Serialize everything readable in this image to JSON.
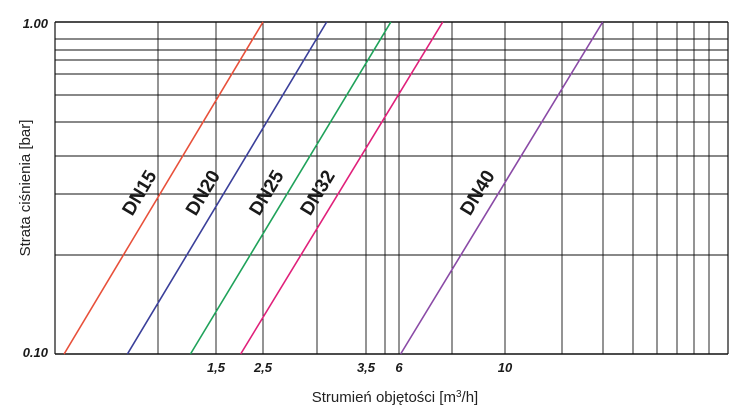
{
  "chart_data": {
    "type": "line",
    "title": "",
    "xlabel": "Strumień objętości [m³/h]",
    "xlabel_main": "Strumień objętości [m",
    "xlabel_sup": "3",
    "xlabel_tail": "/h]",
    "ylabel": "Strata ciśnienia [bar]",
    "x_scale": "log",
    "y_scale": "log",
    "grid": true,
    "ylim": [
      0.1,
      1.0
    ],
    "x_ticks": [
      {
        "value": 1.5,
        "label": "1,5"
      },
      {
        "value": 2.5,
        "label": "2,5"
      },
      {
        "value": 3.5,
        "label": "3,5"
      },
      {
        "value": 6,
        "label": "6"
      },
      {
        "value": 10,
        "label": "10"
      }
    ],
    "y_ticks": [
      {
        "value": 0.1,
        "label": "0.10"
      },
      {
        "value": 1.0,
        "label": "1.00"
      }
    ],
    "series": [
      {
        "name": "DN15",
        "color": "#e8503a",
        "points": [
          [
            0.8,
            0.1
          ],
          [
            2.5,
            1.0
          ]
        ]
      },
      {
        "name": "DN20",
        "color": "#3a3f9a",
        "points": [
          [
            1.15,
            0.1
          ],
          [
            3.6,
            1.0
          ]
        ]
      },
      {
        "name": "DN25",
        "color": "#1fa25a",
        "points": [
          [
            1.65,
            0.1
          ],
          [
            5.2,
            1.0
          ]
        ]
      },
      {
        "name": "DN32",
        "color": "#e0207a",
        "points": [
          [
            2.2,
            0.1
          ],
          [
            7.0,
            1.0
          ]
        ]
      },
      {
        "name": "DN40",
        "color": "#8a4aa6",
        "points": [
          [
            5.5,
            0.1
          ],
          [
            17.5,
            1.0
          ]
        ]
      }
    ]
  }
}
